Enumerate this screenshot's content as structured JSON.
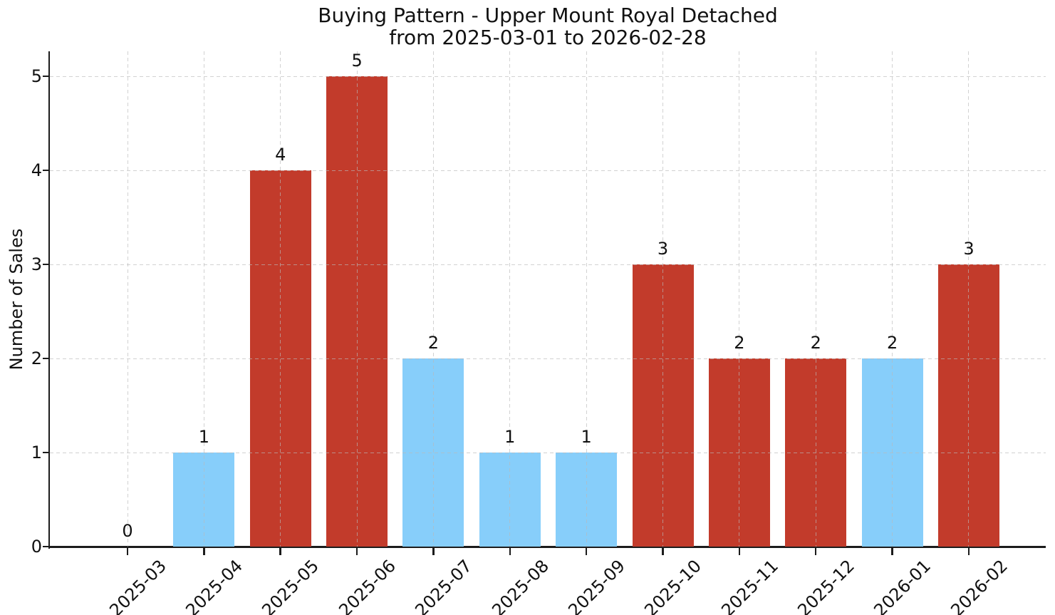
{
  "title": {
    "line1": "Buying Pattern - Upper Mount Royal Detached",
    "line2": "from 2025-03-01 to 2026-02-28"
  },
  "chart_data": {
    "type": "bar",
    "title": "Buying Pattern - Upper Mount Royal Detached\nfrom 2025-03-01 to 2026-02-28",
    "xlabel": "",
    "ylabel": "Number of Sales",
    "categories": [
      "2025-03",
      "2025-04",
      "2025-05",
      "2025-06",
      "2025-07",
      "2025-08",
      "2025-09",
      "2025-10",
      "2025-11",
      "2025-12",
      "2026-01",
      "2026-02"
    ],
    "values": [
      0,
      1,
      4,
      5,
      2,
      1,
      1,
      3,
      2,
      2,
      2,
      3
    ],
    "bar_colors": [
      "#87cefa",
      "#87cefa",
      "#c23b2b",
      "#c23b2b",
      "#87cefa",
      "#87cefa",
      "#87cefa",
      "#c23b2b",
      "#c23b2b",
      "#c23b2b",
      "#87cefa",
      "#c23b2b"
    ],
    "palette": {
      "blue": "#87cefa",
      "red": "#c23b2b"
    },
    "value_labels_shown": true,
    "yticks": [
      0,
      1,
      2,
      3,
      4,
      5
    ],
    "ylim": [
      0,
      5.26
    ],
    "grid": true,
    "grid_style": "dashed",
    "legend_position": "none",
    "x_tick_rotation_deg": 45
  }
}
